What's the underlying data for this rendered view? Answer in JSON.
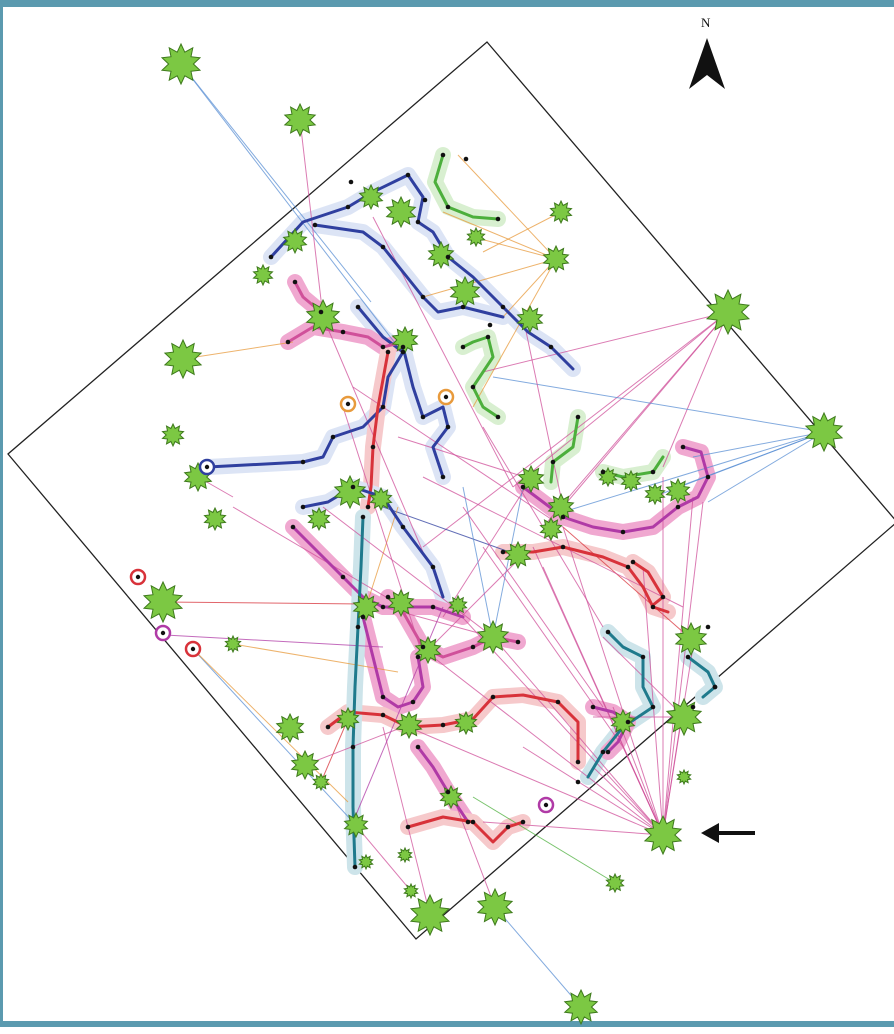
{
  "north_label": "N",
  "colors": {
    "frame": "#5b9aaf",
    "plant": "#7cc843",
    "plant_edge": "#3e7a1c",
    "node": "#111111",
    "blue": "#2f3f9f",
    "lightblue": "#5a8fd4",
    "pink": "#d0509a",
    "magenta": "#b03aa6",
    "red": "#d8323a",
    "green": "#4caf3c",
    "orange": "#e89a3c",
    "teal": "#1f7a8c",
    "halo_blue": "#dce4f5",
    "halo_pink": "#f0a8d0"
  },
  "icons": {
    "north_arrow": "north-arrow-icon",
    "pointer_arrow": "left-arrow-icon",
    "plant": "plant-icon"
  }
}
